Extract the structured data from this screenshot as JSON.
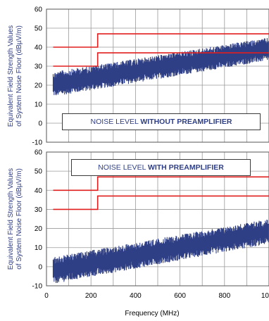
{
  "colors": {
    "noise": "#2f3f86",
    "limit": "#e01e1e",
    "grid": "#9a9a9a",
    "frame": "#555555"
  },
  "chart_data": [
    {
      "type": "area",
      "annotation_prefix": "NOISE LEVEL ",
      "annotation_bold": "WITHOUT PREAMPLIFIER",
      "ylabel_line1": "Equivalent Field Strength Values",
      "ylabel_line2": "of System Noise Floor (dBµV/m)",
      "xlim": [
        0,
        1000
      ],
      "ylim": [
        -10,
        60
      ],
      "yticks": [
        "60",
        "50",
        "40",
        "30",
        "20",
        "10",
        "0",
        "-10"
      ],
      "xticks": [
        "0",
        "200",
        "400",
        "600",
        "800",
        "1000"
      ],
      "series": [
        {
          "x": [
            30,
            1000
          ],
          "y_min": [
            14,
            33
          ],
          "y_max": [
            27,
            45
          ]
        }
      ],
      "limit_lines": [
        {
          "x": [
            30,
            230,
            230,
            1000
          ],
          "y": [
            40,
            40,
            47,
            47
          ]
        },
        {
          "x": [
            30,
            230,
            230,
            1000
          ],
          "y": [
            30,
            30,
            37,
            37
          ]
        }
      ]
    },
    {
      "type": "area",
      "annotation_prefix": "NOISE LEVEL ",
      "annotation_bold": "WITH PREAMPLIFIER",
      "ylabel_line1": "Equivalent Field Strength Values",
      "ylabel_line2": "of System Noise Floor (dBµV/m)",
      "xlim": [
        0,
        1000
      ],
      "ylim": [
        -10,
        60
      ],
      "yticks": [
        "60",
        "50",
        "40",
        "30",
        "20",
        "10",
        "0",
        "-10"
      ],
      "xticks": [
        "0",
        "200",
        "400",
        "600",
        "800",
        "1000"
      ],
      "xlabel": "Frequency (MHz)",
      "series": [
        {
          "x": [
            30,
            1000
          ],
          "y_min": [
            -9,
            12
          ],
          "y_max": [
            5,
            25
          ]
        }
      ],
      "limit_lines": [
        {
          "x": [
            30,
            230,
            230,
            1000
          ],
          "y": [
            40,
            40,
            47,
            47
          ]
        },
        {
          "x": [
            30,
            230,
            230,
            1000
          ],
          "y": [
            30,
            30,
            37,
            37
          ]
        }
      ]
    }
  ]
}
